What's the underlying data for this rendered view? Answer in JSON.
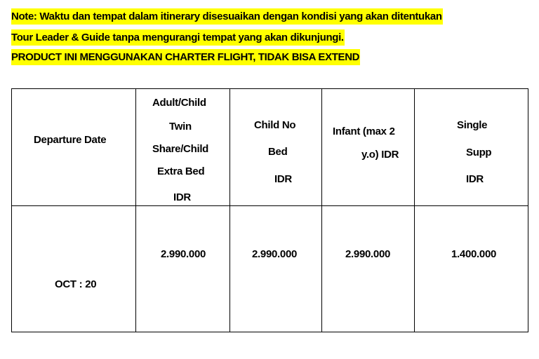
{
  "notes": [
    "Note: Waktu  dan tempat dalam itinerary disesuaikan dengan kondisi yang akan ditentukan",
    "Tour Leader & Guide tanpa mengurangi tempat yang akan dikunjungi.",
    "PRODUCT INI MENGGUNAKAN CHARTER FLIGHT, TIDAK BISA EXTEND"
  ],
  "highlight_color": "#ffff00",
  "table": {
    "headers": [
      {
        "lines": [
          "Departure Date"
        ]
      },
      {
        "lines": [
          "Adult/Child",
          "Twin",
          "Share/Child",
          "Extra Bed",
          "IDR"
        ]
      },
      {
        "lines": [
          "Child No",
          "Bed",
          "IDR"
        ]
      },
      {
        "lines": [
          "Infant (max 2",
          "y.o) IDR"
        ]
      },
      {
        "lines": [
          "Single",
          "Supp",
          "IDR"
        ]
      }
    ],
    "rows": [
      {
        "date": "OCT : 20",
        "adult_twin": "2.990.000",
        "child_no_bed": "2.990.000",
        "infant": "2.990.000",
        "single_supp": "1.400.000"
      }
    ]
  }
}
